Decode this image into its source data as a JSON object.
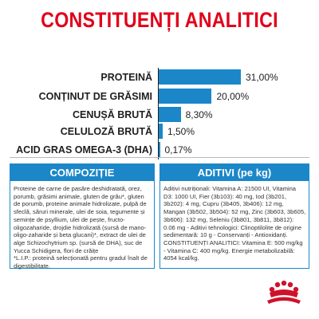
{
  "title": "CONSTITUENȚI ANALITICI",
  "chart_data": {
    "type": "bar",
    "categories": [
      "PROTEINĂ",
      "CONȚINUT DE GRĂSIMI",
      "CENUȘĂ BRUTĂ",
      "CELULOZĂ BRUTĂ",
      "ACID GRAS OMEGA-3 (DHA)"
    ],
    "values": [
      31.0,
      20.0,
      8.3,
      1.5,
      0.17
    ],
    "value_labels": [
      "31,00%",
      "20,00%",
      "8,30%",
      "1,50%",
      "0,17%"
    ],
    "xlim": [
      0,
      36
    ],
    "bar_color": "#1b87c9"
  },
  "composition": {
    "header": "COMPOZIȚIE",
    "text": "Proteine de carne de pasăre deshidratată, orez, porumb, grăsimi animale, gluten de grâu*, gluten de porumb, proteine animale hidrolizate, pulpă de sfeclă, săruri minerale, ulei de soia, tegumente și semințe de psyllium, ulei de pește, fructo-oligozaharide, drojdie hidrolizată (sursă de mano-oligo-zaharide și beta glucani)*, extract de ulei de alge Schizochytrium sp. (sursă de DHA), suc de Yucca Schidigera, flori de crăițe",
    "footnote": "*L.I.P.: proteină selecționată pentru gradul înalt de digestibilitate."
  },
  "additives": {
    "header": "ADITIVI (pe kg)",
    "text": "Aditivi nutriționali: Vitamina A: 21500 UI, Vitamina D3: 1000 UI, Fier (3b103): 40 mg, Iod (3b201, 3b202): 4 mg, Cupru (3b405, 3b406): 12 mg, Mangan (3b502, 3b504): 52 mg, Zinc (3b603, 3b605, 3b606): 132 mg, Seleniu (3b801, 3b811, 3b812): 0.06 mg - Aditivi tehnologici: Clinoptilolite de origine sedimentară: 10 g - Conservanți - Antioxidanți.",
    "constituents": "CONSTITUENȚI ANALITICI: Vitamina E: 500 mg/kg - Vitamina C: 400 mg/kg. Energie metabolizabilă: 4054 kcal/kg."
  },
  "colors": {
    "title": "#e2001a",
    "accent": "#1b87c9",
    "logo": "#d0112b"
  },
  "logo_icon": "royal-canin-crown-logo-icon"
}
